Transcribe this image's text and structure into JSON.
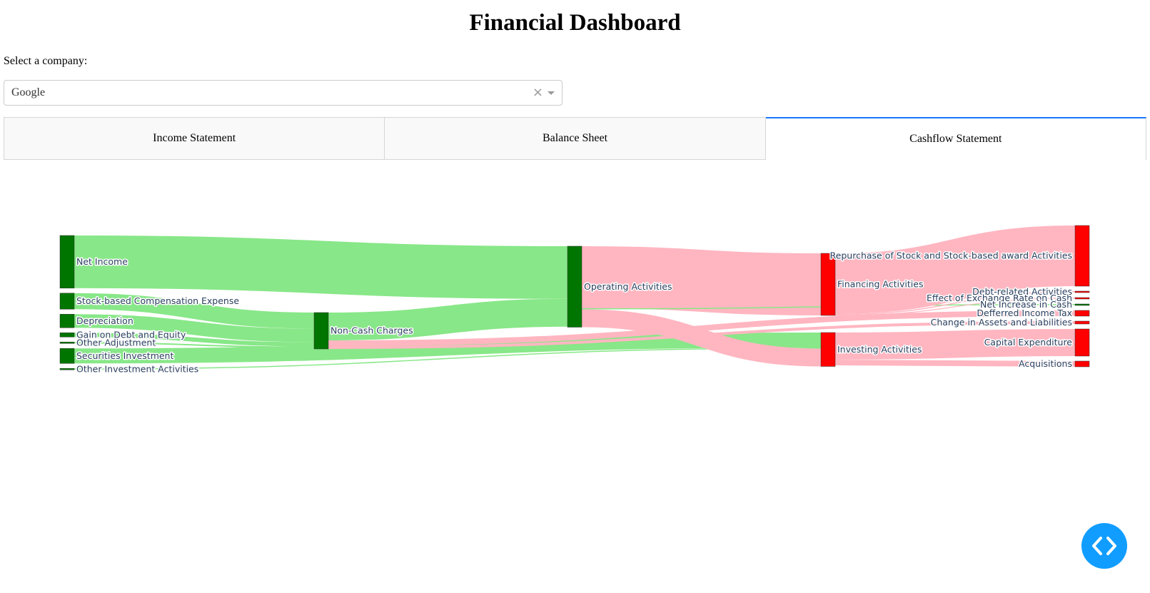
{
  "title": "Financial Dashboard",
  "company_select": {
    "label": "Select a company:",
    "value": "Google",
    "clear_icon": "×"
  },
  "tabs": [
    {
      "label": "Income Statement",
      "active": false
    },
    {
      "label": "Balance Sheet",
      "active": false
    },
    {
      "label": "Cashflow Statement",
      "active": true
    }
  ],
  "colors": {
    "positive_node": "#007500",
    "negative_node": "#ff0000",
    "positive_link": "#88e788",
    "negative_link": "#ffb6c1",
    "tab_accent": "#1975fa",
    "fab": "#119dff"
  },
  "chart_data": {
    "type": "sankey",
    "nodes": [
      {
        "id": "net_income",
        "label": "Net Income",
        "sign": "positive"
      },
      {
        "id": "sbc",
        "label": "Stock-based Compensation Expense",
        "sign": "positive"
      },
      {
        "id": "depreciation",
        "label": "Depreciation",
        "sign": "positive"
      },
      {
        "id": "gain_debt",
        "label": "Gain on Debt and Equity",
        "sign": "positive"
      },
      {
        "id": "other_adj",
        "label": "Other Adjustment",
        "sign": "positive"
      },
      {
        "id": "securities_inv",
        "label": "Securities Investment",
        "sign": "positive"
      },
      {
        "id": "other_inv",
        "label": "Other Investment Activities",
        "sign": "positive"
      },
      {
        "id": "non_cash",
        "label": "Non-Cash Charges",
        "sign": "positive"
      },
      {
        "id": "operating",
        "label": "Operating Activities",
        "sign": "positive"
      },
      {
        "id": "financing",
        "label": "Financing Activities",
        "sign": "negative"
      },
      {
        "id": "investing",
        "label": "Investing Activities",
        "sign": "negative"
      },
      {
        "id": "repurchase",
        "label": "Repurchase of Stock and Stock-based award Activities",
        "sign": "negative"
      },
      {
        "id": "debt_related",
        "label": "Debt-related Activities",
        "sign": "negative"
      },
      {
        "id": "fx_effect",
        "label": "Effect of Exchange Rate on Cash",
        "sign": "negative"
      },
      {
        "id": "net_increase",
        "label": "Net Increase in Cash",
        "sign": "positive"
      },
      {
        "id": "deferred_tax",
        "label": "Defferred Income Tax",
        "sign": "negative"
      },
      {
        "id": "change_assets",
        "label": "Change in Assets and Liabilities",
        "sign": "negative"
      },
      {
        "id": "capex",
        "label": "Capital Expenditure",
        "sign": "negative"
      },
      {
        "id": "acquisitions",
        "label": "Acquisitions",
        "sign": "negative"
      }
    ],
    "links": [
      {
        "source": "net_income",
        "target": "operating",
        "value": 73.8,
        "sign": "positive"
      },
      {
        "source": "sbc",
        "target": "non_cash",
        "value": 22.5,
        "sign": "positive"
      },
      {
        "source": "depreciation",
        "target": "non_cash",
        "value": 19.0,
        "sign": "positive"
      },
      {
        "source": "gain_debt",
        "target": "non_cash",
        "value": 6.0,
        "sign": "positive"
      },
      {
        "source": "other_adj",
        "target": "non_cash",
        "value": 2.0,
        "sign": "positive"
      },
      {
        "source": "securities_inv",
        "target": "investing",
        "value": 21.0,
        "sign": "positive"
      },
      {
        "source": "other_inv",
        "target": "investing",
        "value": 1.5,
        "sign": "positive"
      },
      {
        "source": "non_cash",
        "target": "operating",
        "value": 39.0,
        "sign": "positive"
      },
      {
        "source": "non_cash",
        "target": "deferred_tax",
        "value": 8.0,
        "sign": "negative"
      },
      {
        "source": "non_cash",
        "target": "change_assets",
        "value": 4.0,
        "sign": "negative"
      },
      {
        "source": "operating",
        "target": "financing",
        "value": 87.0,
        "sign": "negative"
      },
      {
        "source": "operating",
        "target": "net_increase",
        "value": 1.5,
        "sign": "positive"
      },
      {
        "source": "operating",
        "target": "investing",
        "value": 25.0,
        "sign": "negative"
      },
      {
        "source": "financing",
        "target": "repurchase",
        "value": 85.0,
        "sign": "negative"
      },
      {
        "source": "financing",
        "target": "debt_related",
        "value": 1.5,
        "sign": "negative"
      },
      {
        "source": "financing",
        "target": "fx_effect",
        "value": 0.5,
        "sign": "negative"
      },
      {
        "source": "investing",
        "target": "capex",
        "value": 38.0,
        "sign": "negative"
      },
      {
        "source": "investing",
        "target": "acquisitions",
        "value": 8.0,
        "sign": "negative"
      }
    ]
  }
}
